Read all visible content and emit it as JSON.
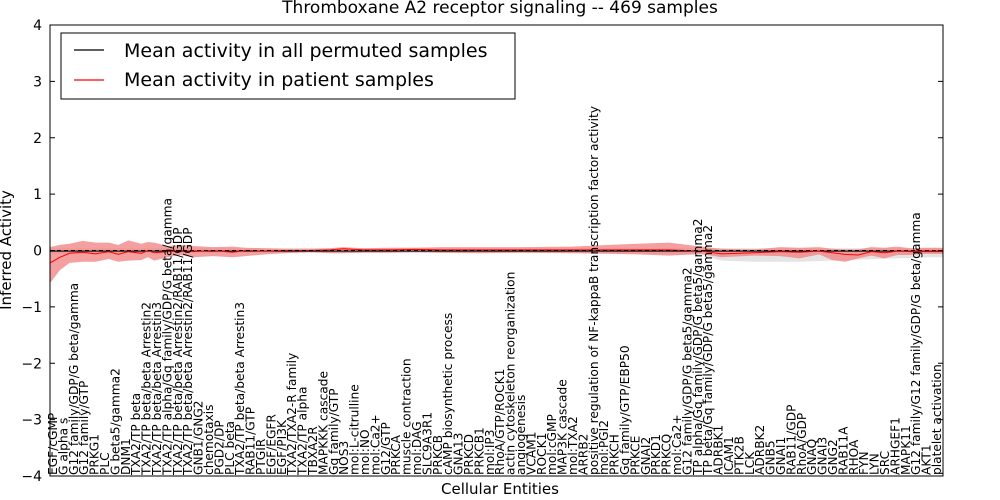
{
  "chart_data": {
    "type": "line",
    "title": "Thromboxane A2 receptor signaling -- 469 samples",
    "xlabel": "Cellular Entities",
    "ylabel": "Inferred Activity",
    "ylim": [
      -4,
      4
    ],
    "yticks": [
      "4",
      "3",
      "2",
      "1",
      "0",
      "−1",
      "−2",
      "−3",
      "−4"
    ],
    "grid": false,
    "legend_position": "top-left",
    "entity_count": 137,
    "categories": [
      "EGF/cGMP",
      "G alpha s",
      "G12 family/GDP/G beta/gamma",
      "G12 family/GTP",
      "PRKG1",
      "PLC",
      "G beta5/gamma2",
      "DNM1",
      "TXA2/TP beta",
      "TXA2/TP beta/beta Arrestin2",
      "TXA2/TP beta/beta Arrestin3",
      "TXA2/TP alpha/Gq family/GDP/G beta/gamma",
      "TXA2/TP beta/beta Arrestin2/RAB11/GDP",
      "TXA2/TP beta/beta Arrestin2/RAB11/GDP",
      "GNB1/GNG2",
      "chemotaxis",
      "PGD2/DP",
      "PLC beta",
      "TXA2/TP beta/beta Arrestin3",
      "RAB11/GTP",
      "PTGIR",
      "EGF/EGFR",
      "EGF/PI3K",
      "TXA2/TXA2-R family",
      "TXA2/TP alpha",
      "TBXA2R",
      "MAPKKK cascade",
      "Gq family/GTP",
      "NOS3",
      "mol:L-citrulline",
      "mol:NO",
      "mol:Ca2+",
      "G12/GTP",
      "PRKCA",
      "muscle contraction",
      "mol:DAG",
      "SLC9A3R1",
      "PRKCB",
      "cAMP biosynthetic process",
      "GNA13",
      "PRKCD",
      "PRKCB1",
      "mol:IP3",
      "RhoA/GTP/ROCK1",
      "actin cytoskeleton reorganization",
      "angiogenesis",
      "VCAM1",
      "ROCK1",
      "mol:cGMP",
      "MAP3K cascade",
      "mol:TXA2",
      "ARRB2",
      "positive regulation of NF-kappaB transcription factor activity",
      "mol:PGI2",
      "PRKCH",
      "Gq family/GTP/EBP50",
      "PRKCE",
      "GNAI2",
      "PRKD1",
      "PRKCQ",
      "mol:Ca2+",
      "G12 family/GDP/G beta5/gamma2",
      "TP alpha/Gq family/GDP/G beta5/gamma2",
      "TP beta/Gq family/GDP/G beta5/gamma2",
      "ADRBK1",
      "ICAM1",
      "PTK2B",
      "LCK",
      "ADRBK2",
      "GNB5",
      "GNAI1",
      "RAB11/GDP",
      "RhoA/GDP",
      "GNAQ",
      "GNAI3",
      "GNG2",
      "RAB11A",
      "RHOA",
      "FYN",
      "LYN",
      "SRC",
      "ARHGEF1",
      "MAPK11",
      "G12 family/G12 family/GDP/G beta/gamma",
      "AKT1",
      "platelet activation"
    ],
    "series": [
      {
        "name": "Mean activity in all permuted samples",
        "color": "#000000",
        "band_color": "#d9d9d9",
        "x": [
          0,
          1.5,
          3,
          5,
          10,
          20,
          30,
          40,
          45,
          48,
          52,
          60,
          75,
          90,
          100,
          103,
          108,
          115,
          120,
          125,
          130,
          135,
          137
        ],
        "values": [
          -0.01,
          -0.01,
          -0.01,
          -0.01,
          -0.01,
          -0.01,
          -0.01,
          -0.01,
          -0.01,
          -0.01,
          -0.01,
          -0.01,
          -0.01,
          -0.01,
          -0.01,
          -0.01,
          -0.01,
          -0.01,
          -0.01,
          -0.01,
          -0.01,
          -0.01,
          -0.01
        ],
        "lower": [
          -0.06,
          -0.06,
          -0.06,
          -0.06,
          -0.05,
          -0.05,
          -0.04,
          -0.04,
          -0.04,
          -0.04,
          -0.04,
          -0.04,
          -0.04,
          -0.05,
          -0.08,
          -0.18,
          -0.2,
          -0.2,
          -0.18,
          -0.16,
          -0.14,
          -0.12,
          -0.12
        ],
        "upper": [
          0.04,
          0.04,
          0.04,
          0.04,
          0.04,
          0.04,
          0.04,
          0.04,
          0.04,
          0.04,
          0.04,
          0.04,
          0.04,
          0.04,
          0.04,
          0.04,
          0.04,
          0.04,
          0.04,
          0.04,
          0.04,
          0.04,
          0.04
        ]
      },
      {
        "name": "Mean activity in patient samples",
        "color": "#ff0000",
        "band_color": "#f08080",
        "x": [
          0,
          1.5,
          3,
          5,
          7,
          9,
          10.5,
          12,
          14,
          15,
          16,
          18,
          20,
          22,
          25,
          28,
          30,
          33,
          36,
          40,
          43,
          45,
          48,
          52,
          56,
          60,
          66,
          72,
          80,
          86,
          90,
          95,
          100,
          103,
          108,
          112,
          115,
          118,
          120,
          122,
          124,
          126,
          128,
          130,
          132,
          134,
          137
        ],
        "values": [
          -0.22,
          -0.12,
          -0.05,
          -0.03,
          -0.06,
          -0.02,
          -0.07,
          -0.02,
          -0.05,
          0.0,
          -0.04,
          -0.02,
          0.0,
          -0.02,
          0.0,
          -0.03,
          0.0,
          -0.01,
          0.0,
          0.0,
          0.01,
          0.03,
          0.01,
          0.01,
          0.02,
          0.01,
          0.01,
          0.01,
          0.01,
          0.01,
          0.01,
          0.01,
          -0.01,
          -0.06,
          -0.04,
          -0.02,
          -0.03,
          -0.01,
          -0.04,
          -0.07,
          -0.08,
          -0.02,
          -0.04,
          -0.01,
          -0.02,
          -0.02,
          -0.02
        ],
        "lower": [
          -0.58,
          -0.35,
          -0.22,
          -0.2,
          -0.2,
          -0.15,
          -0.2,
          -0.18,
          -0.17,
          -0.12,
          -0.18,
          -0.12,
          -0.08,
          -0.12,
          -0.1,
          -0.12,
          -0.1,
          -0.07,
          -0.05,
          -0.03,
          -0.05,
          -0.05,
          -0.04,
          -0.04,
          -0.03,
          -0.04,
          -0.05,
          -0.04,
          -0.05,
          -0.06,
          -0.07,
          -0.09,
          -0.06,
          -0.12,
          -0.09,
          -0.1,
          -0.14,
          -0.07,
          -0.17,
          -0.2,
          -0.14,
          -0.09,
          -0.14,
          -0.08,
          -0.08,
          -0.06,
          -0.06
        ],
        "upper": [
          0.06,
          0.1,
          0.12,
          0.17,
          0.14,
          0.14,
          0.1,
          0.18,
          0.12,
          0.15,
          0.14,
          0.08,
          0.1,
          0.08,
          0.06,
          0.07,
          0.05,
          0.04,
          0.03,
          0.03,
          0.04,
          0.06,
          0.04,
          0.05,
          0.05,
          0.06,
          0.06,
          0.06,
          0.07,
          0.1,
          0.12,
          0.14,
          0.07,
          0.03,
          0.02,
          0.06,
          0.05,
          0.06,
          0.03,
          0.02,
          0.02,
          0.06,
          0.05,
          0.07,
          0.04,
          0.05,
          0.05
        ]
      }
    ]
  }
}
